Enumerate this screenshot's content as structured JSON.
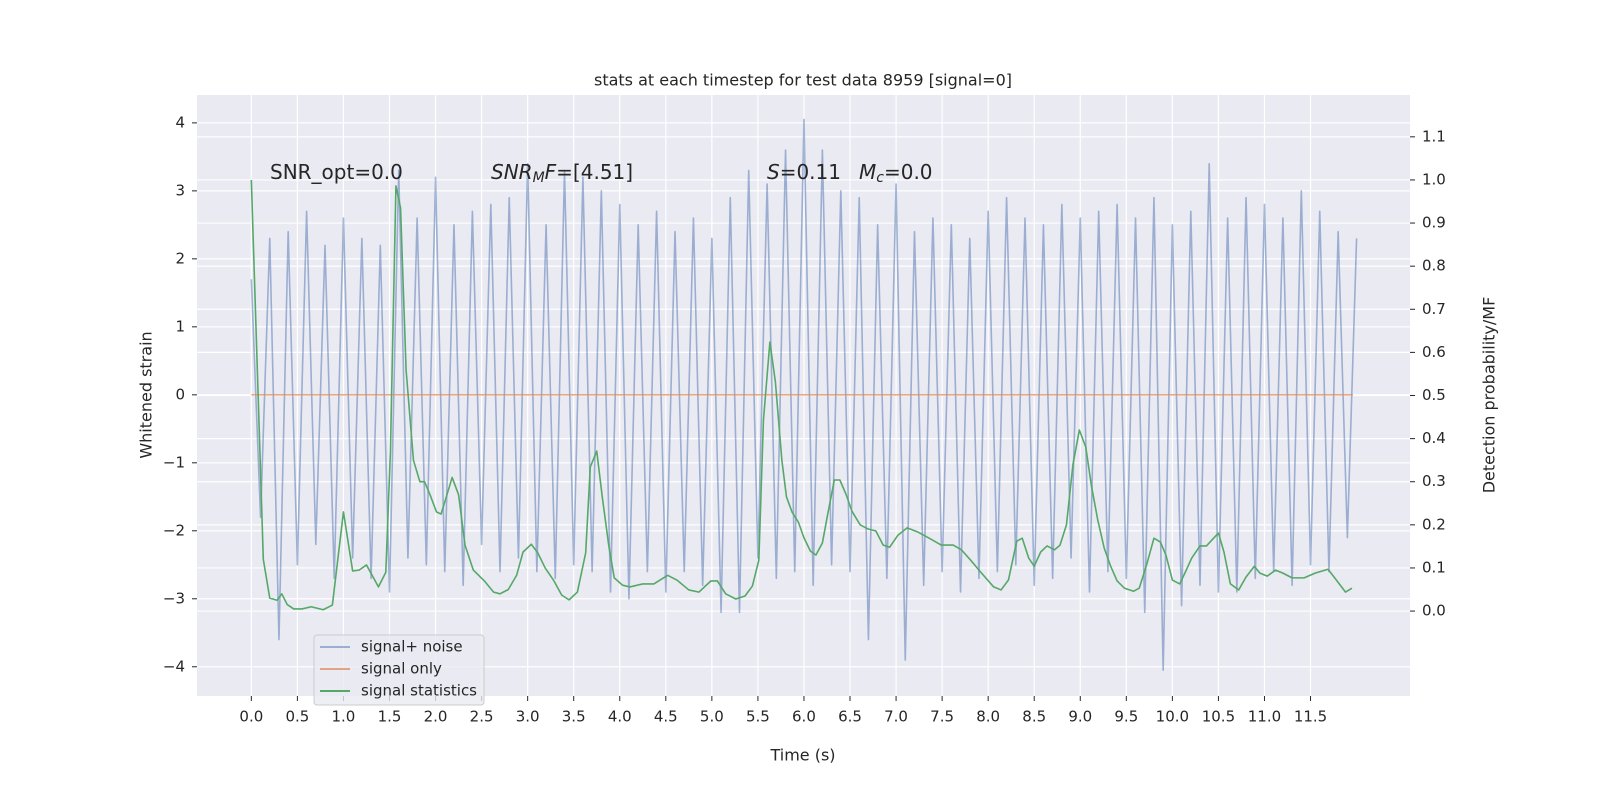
{
  "chart_data": {
    "type": "line",
    "title": "stats at each timestep for test data 8959 [signal=0]",
    "xlabel": "Time (s)",
    "ylabel": "Whitened strain",
    "y2label": "Detection probability/MF",
    "grid": true,
    "legend_loc": "lower left",
    "background": "#eaeaf2",
    "xlim": [
      -0.59,
      12.58
    ],
    "ylim": [
      -4.43,
      4.41
    ],
    "y2lim": [
      -0.197,
      1.197
    ],
    "xticks": [
      {
        "value": 0,
        "label": "0.0"
      },
      0.5,
      {
        "value": 1,
        "label": "1.0"
      },
      1.5,
      {
        "value": 2,
        "label": "2.0"
      },
      2.5,
      {
        "value": 3,
        "label": "3.0"
      },
      3.5,
      {
        "value": 4,
        "label": "4.0"
      },
      4.5,
      {
        "value": 5,
        "label": "5.0"
      },
      5.5,
      {
        "value": 6,
        "label": "6.0"
      },
      6.5,
      {
        "value": 7,
        "label": "7.0"
      },
      7.5,
      {
        "value": 8,
        "label": "8.0"
      },
      8.5,
      {
        "value": 9,
        "label": "9.0"
      },
      9.5,
      {
        "value": 10,
        "label": "10.0"
      },
      10.5,
      {
        "value": 11,
        "label": "11.0"
      },
      11.5
    ],
    "yticks": [
      {
        "value": -4,
        "label": "−4"
      },
      {
        "value": -3,
        "label": "−3"
      },
      {
        "value": -2,
        "label": "−2"
      },
      {
        "value": -1,
        "label": "−1"
      },
      0,
      1,
      2,
      3,
      4
    ],
    "y2ticks": [
      {
        "value": 0,
        "label": "0.0"
      },
      0.1,
      0.2,
      0.3,
      0.4,
      0.5,
      0.6,
      0.7,
      0.8,
      0.9,
      {
        "value": 1,
        "label": "1.0"
      },
      1.1
    ],
    "annotations": [
      {
        "parts": [
          {
            "text": "SNR_opt=0.0",
            "style": "normal"
          }
        ]
      },
      {
        "parts": [
          {
            "text": "SNR",
            "style": "italic"
          },
          {
            "text": "M",
            "style": "italic-sub"
          },
          {
            "text": "F",
            "style": "italic"
          },
          {
            "text": "=[4.51]",
            "style": "normal"
          }
        ]
      },
      {
        "parts": [
          {
            "text": "S",
            "style": "italic"
          },
          {
            "text": "=0.11",
            "style": "normal"
          }
        ]
      },
      {
        "parts": [
          {
            "text": "M",
            "style": "italic"
          },
          {
            "text": "c",
            "style": "italic-sub"
          },
          {
            "text": "=0.0",
            "style": "normal"
          }
        ]
      }
    ],
    "series": [
      {
        "name": "signal+ noise",
        "color": "#4c72b0",
        "opacity": 0.5,
        "axis": "y",
        "x": [
          0,
          0.1,
          0.2,
          0.3,
          0.4,
          0.5,
          0.6,
          0.7,
          0.8,
          0.9,
          1,
          1.1,
          1.2,
          1.3,
          1.4,
          1.5,
          1.6,
          1.7,
          1.8,
          1.9,
          2,
          2.1,
          2.2,
          2.3,
          2.4,
          2.5,
          2.6,
          2.7,
          2.8,
          2.9,
          3,
          3.1,
          3.2,
          3.3,
          3.4,
          3.5,
          3.6,
          3.7,
          3.8,
          3.9,
          4,
          4.1,
          4.2,
          4.3,
          4.4,
          4.5,
          4.6,
          4.7,
          4.8,
          4.9,
          5,
          5.1,
          5.2,
          5.3,
          5.4,
          5.5,
          5.6,
          5.7,
          5.8,
          5.9,
          6,
          6.1,
          6.2,
          6.3,
          6.4,
          6.5,
          6.6,
          6.7,
          6.8,
          6.9,
          7,
          7.1,
          7.2,
          7.3,
          7.4,
          7.5,
          7.6,
          7.7,
          7.8,
          7.9,
          8,
          8.1,
          8.2,
          8.3,
          8.4,
          8.5,
          8.6,
          8.7,
          8.8,
          8.9,
          9,
          9.1,
          9.2,
          9.3,
          9.4,
          9.5,
          9.6,
          9.7,
          9.8,
          9.9,
          10,
          10.1,
          10.2,
          10.3,
          10.4,
          10.5,
          10.6,
          10.7,
          10.8,
          10.9,
          11,
          11.1,
          11.2,
          11.3,
          11.4,
          11.5,
          11.6,
          11.7,
          11.8,
          11.9,
          12
        ],
        "values": [
          1.7,
          -1.8,
          2.3,
          -3.6,
          2.4,
          -2.5,
          2.7,
          -2.2,
          2.2,
          -2.7,
          2.6,
          -2.4,
          2.3,
          -2.7,
          2.2,
          -2.9,
          3.3,
          -2.4,
          2.6,
          -2.5,
          3.2,
          -2.6,
          2.5,
          -2.8,
          2.7,
          -2.2,
          2.8,
          -2.6,
          2.9,
          -2.4,
          3.4,
          -2.6,
          2.5,
          -2.7,
          3.3,
          -2.5,
          3.2,
          -2.6,
          3.0,
          -2.9,
          2.8,
          -3.0,
          2.5,
          -2.6,
          2.7,
          -2.9,
          2.4,
          -2.6,
          2.6,
          -2.8,
          2.3,
          -3.2,
          2.9,
          -3.2,
          3.3,
          -2.4,
          3.1,
          -2.7,
          3.6,
          -2.6,
          4.05,
          -2.8,
          3.6,
          -2.5,
          3.0,
          -2.6,
          2.9,
          -3.6,
          2.5,
          -2.7,
          3.1,
          -3.9,
          2.4,
          -2.8,
          2.6,
          -2.6,
          2.5,
          -2.9,
          2.3,
          -2.7,
          2.7,
          -2.6,
          2.9,
          -2.5,
          2.6,
          -2.8,
          2.5,
          -2.7,
          2.8,
          -2.4,
          2.6,
          -2.9,
          2.7,
          -2.6,
          2.8,
          -2.7,
          2.6,
          -3.2,
          2.9,
          -4.05,
          2.5,
          -3.1,
          2.7,
          -2.8,
          3.4,
          -2.9,
          2.6,
          -2.9,
          2.9,
          -2.7,
          2.8,
          -2.6,
          2.6,
          -2.8,
          3.0,
          -2.5,
          2.7,
          -2.6,
          2.4,
          -2.1,
          2.3
        ]
      },
      {
        "name": "signal only",
        "color": "#dd8452",
        "opacity": 0.7,
        "axis": "y",
        "x": [
          0,
          11.96
        ],
        "values": [
          0,
          0
        ]
      },
      {
        "name": "signal statistics",
        "color": "#55a868",
        "opacity": 1,
        "axis": "y2",
        "x": [
          0,
          0.13,
          0.2,
          0.28,
          0.33,
          0.39,
          0.46,
          0.55,
          0.65,
          0.78,
          0.88,
          1.0,
          1.1,
          1.17,
          1.25,
          1.38,
          1.46,
          1.51,
          1.57,
          1.62,
          1.68,
          1.76,
          1.83,
          1.88,
          1.94,
          2.01,
          2.06,
          2.12,
          2.18,
          2.25,
          2.32,
          2.41,
          2.53,
          2.63,
          2.7,
          2.79,
          2.88,
          2.95,
          3.04,
          3.11,
          3.19,
          3.28,
          3.37,
          3.45,
          3.54,
          3.63,
          3.68,
          3.75,
          3.81,
          3.88,
          3.94,
          4.03,
          4.11,
          4.25,
          4.37,
          4.52,
          4.62,
          4.75,
          4.86,
          4.99,
          5.06,
          5.15,
          5.26,
          5.36,
          5.44,
          5.51,
          5.56,
          5.63,
          5.69,
          5.76,
          5.81,
          5.87,
          5.94,
          6.0,
          6.07,
          6.13,
          6.2,
          6.26,
          6.33,
          6.39,
          6.46,
          6.52,
          6.61,
          6.7,
          6.78,
          6.86,
          6.93,
          7.02,
          7.12,
          7.24,
          7.36,
          7.49,
          7.62,
          7.71,
          7.81,
          7.92,
          8.06,
          8.14,
          8.22,
          8.31,
          8.37,
          8.44,
          8.5,
          8.57,
          8.64,
          8.72,
          8.78,
          8.85,
          8.92,
          8.99,
          9.06,
          9.12,
          9.19,
          9.26,
          9.33,
          9.4,
          9.48,
          9.58,
          9.64,
          9.72,
          9.8,
          9.87,
          9.93,
          10.0,
          10.08,
          10.14,
          10.21,
          10.3,
          10.37,
          10.43,
          10.5,
          10.56,
          10.63,
          10.72,
          10.8,
          10.89,
          10.95,
          11.03,
          11.12,
          11.2,
          11.3,
          11.43,
          11.55,
          11.69,
          11.78,
          11.88,
          11.95
        ],
        "values": [
          1.0,
          0.12,
          0.03,
          0.025,
          0.04,
          0.015,
          0.005,
          0.005,
          0.01,
          0.003,
          0.014,
          0.23,
          0.093,
          0.095,
          0.107,
          0.056,
          0.09,
          0.37,
          0.986,
          0.935,
          0.56,
          0.35,
          0.3,
          0.3,
          0.27,
          0.23,
          0.225,
          0.267,
          0.31,
          0.27,
          0.153,
          0.095,
          0.07,
          0.044,
          0.04,
          0.05,
          0.083,
          0.137,
          0.155,
          0.135,
          0.1,
          0.072,
          0.037,
          0.026,
          0.044,
          0.135,
          0.334,
          0.371,
          0.265,
          0.153,
          0.077,
          0.06,
          0.056,
          0.063,
          0.063,
          0.083,
          0.072,
          0.049,
          0.044,
          0.07,
          0.07,
          0.04,
          0.028,
          0.035,
          0.058,
          0.118,
          0.443,
          0.624,
          0.531,
          0.35,
          0.265,
          0.23,
          0.206,
          0.17,
          0.139,
          0.13,
          0.158,
          0.227,
          0.304,
          0.304,
          0.269,
          0.232,
          0.2,
          0.19,
          0.186,
          0.153,
          0.148,
          0.176,
          0.193,
          0.183,
          0.169,
          0.153,
          0.153,
          0.142,
          0.118,
          0.09,
          0.056,
          0.049,
          0.072,
          0.162,
          0.169,
          0.123,
          0.104,
          0.137,
          0.151,
          0.142,
          0.153,
          0.2,
          0.339,
          0.42,
          0.38,
          0.292,
          0.211,
          0.146,
          0.104,
          0.07,
          0.053,
          0.046,
          0.053,
          0.107,
          0.169,
          0.16,
          0.13,
          0.072,
          0.063,
          0.09,
          0.123,
          0.151,
          0.151,
          0.165,
          0.181,
          0.137,
          0.063,
          0.049,
          0.079,
          0.104,
          0.088,
          0.081,
          0.095,
          0.088,
          0.077,
          0.077,
          0.088,
          0.097,
          0.072,
          0.044,
          0.053
        ]
      }
    ]
  }
}
